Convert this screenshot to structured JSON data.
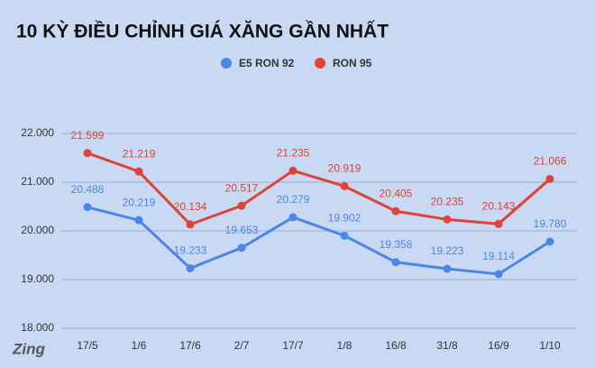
{
  "chart_data": {
    "type": "line",
    "title": "10 KỲ ĐIỀU CHỈNH GIÁ XĂNG GẦN NHẤT",
    "logo": "Zing",
    "categories": [
      "17/5",
      "1/6",
      "17/6",
      "2/7",
      "17/7",
      "1/8",
      "16/8",
      "31/8",
      "16/9",
      "1/10"
    ],
    "series": [
      {
        "name": "E5 RON 92",
        "color": "#4a86e8",
        "values": [
          20488,
          20219,
          19233,
          19653,
          20279,
          19902,
          19358,
          19223,
          19114,
          19780
        ],
        "value_labels": [
          "20.488",
          "20.219",
          "19.233",
          "19.653",
          "20.279",
          "19.902",
          "19.358",
          "19.223",
          "19.114",
          "19.780"
        ]
      },
      {
        "name": "RON 95",
        "color": "#db4437",
        "values": [
          21599,
          21219,
          20134,
          20517,
          21235,
          20919,
          20405,
          20235,
          20143,
          21066
        ],
        "value_labels": [
          "21.599",
          "21.219",
          "20.134",
          "20.517",
          "21.235",
          "20.919",
          "20.405",
          "20.235",
          "20.143",
          "21.066"
        ]
      }
    ],
    "ylim": [
      18000,
      22000
    ],
    "yticks": [
      {
        "value": 18000,
        "label": "18.000"
      },
      {
        "value": 19000,
        "label": "19.000"
      },
      {
        "value": 20000,
        "label": "20.000"
      },
      {
        "value": 21000,
        "label": "21.000"
      },
      {
        "value": 22000,
        "label": "22.000"
      }
    ],
    "grid": true,
    "legend": "top"
  }
}
